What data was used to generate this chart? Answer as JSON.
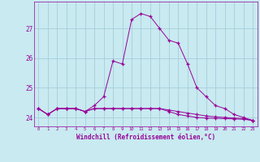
{
  "xlabel": "Windchill (Refroidissement éolien,°C)",
  "background_color": "#c8eaf0",
  "grid_color": "#a0c8d8",
  "line_color": "#990099",
  "x_hours": [
    0,
    1,
    2,
    3,
    4,
    5,
    6,
    7,
    8,
    9,
    10,
    11,
    12,
    13,
    14,
    15,
    16,
    17,
    18,
    19,
    20,
    21,
    22,
    23
  ],
  "curve1": [
    24.3,
    24.1,
    24.3,
    24.3,
    24.3,
    24.2,
    24.4,
    24.7,
    25.9,
    25.8,
    27.3,
    27.5,
    27.4,
    27.0,
    26.6,
    26.5,
    25.8,
    25.0,
    24.7,
    24.4,
    24.3,
    24.1,
    24.0,
    23.9
  ],
  "curve2": [
    24.3,
    24.1,
    24.3,
    24.3,
    24.3,
    24.2,
    24.3,
    24.3,
    24.3,
    24.3,
    24.3,
    24.3,
    24.3,
    24.3,
    24.2,
    24.1,
    24.05,
    24.0,
    23.98,
    23.97,
    23.96,
    23.95,
    23.94,
    23.9
  ],
  "curve3": [
    24.3,
    24.1,
    24.3,
    24.3,
    24.3,
    24.2,
    24.3,
    24.3,
    24.3,
    24.3,
    24.3,
    24.3,
    24.3,
    24.3,
    24.25,
    24.2,
    24.15,
    24.1,
    24.05,
    24.02,
    24.0,
    23.98,
    23.96,
    23.9
  ],
  "ylim": [
    23.7,
    27.9
  ],
  "yticks": [
    24,
    25,
    26,
    27
  ],
  "xticks": [
    0,
    1,
    2,
    3,
    4,
    5,
    6,
    7,
    8,
    9,
    10,
    11,
    12,
    13,
    14,
    15,
    16,
    17,
    18,
    19,
    20,
    21,
    22,
    23
  ],
  "xtick_labels": [
    "0",
    "1",
    "2",
    "3",
    "4",
    "5",
    "6",
    "7",
    "8",
    "9",
    "10",
    "11",
    "12",
    "13",
    "14",
    "15",
    "16",
    "17",
    "18",
    "19",
    "20",
    "21",
    "22",
    "23"
  ]
}
